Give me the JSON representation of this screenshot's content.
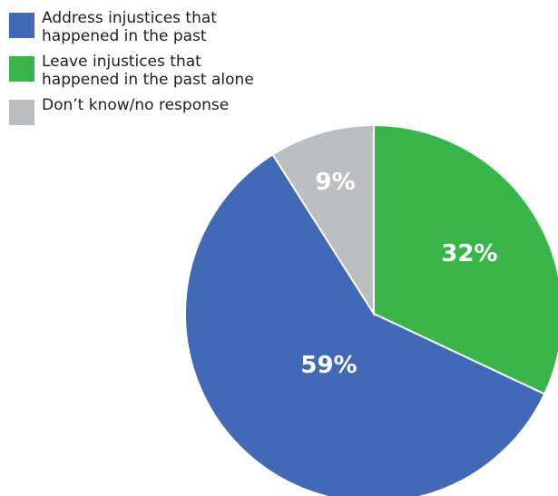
{
  "chart_data": {
    "type": "pie",
    "categories": [
      "Address injustices that\nhappened in the past",
      "Leave injustices that\nhappened in the past alone",
      "Don’t know/no response"
    ],
    "values": [
      59,
      32,
      9
    ],
    "value_labels": [
      "59%",
      "32%",
      "9%"
    ],
    "colors": [
      "#4169b5",
      "#3ab54a",
      "#bcbec0"
    ],
    "legend_position": "top-left"
  }
}
